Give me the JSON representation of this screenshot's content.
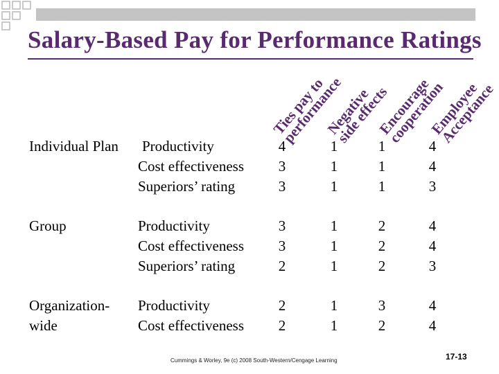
{
  "slide": {
    "title": "Salary-Based Pay for Performance Ratings",
    "footer": "Cummings & Worley, 9e (c) 2008 South-Western/Cengage Learning",
    "page_number": "17-13",
    "accent_color": "#5a2a6e",
    "decoration_color": "#b9b9b9"
  },
  "columns": [
    {
      "line1": "Ties pay to",
      "line2": "performance"
    },
    {
      "line1": "Negative",
      "line2": "side effects"
    },
    {
      "line1": "Encourage",
      "line2": "cooperation"
    },
    {
      "line1": "Employee",
      "line2": "Acceptance"
    }
  ],
  "groups": [
    {
      "plan_lines": [
        "Individual Plan"
      ],
      "rows": [
        {
          "criterion": "Productivity",
          "values": [
            "4",
            "1",
            "1",
            "4"
          ]
        },
        {
          "criterion": "Cost effectiveness",
          "values": [
            "3",
            "1",
            "1",
            "4"
          ]
        },
        {
          "criterion": "Superiors’ rating",
          "values": [
            "3",
            "1",
            "1",
            "3"
          ]
        }
      ]
    },
    {
      "plan_lines": [
        "Group"
      ],
      "rows": [
        {
          "criterion": "Productivity",
          "values": [
            "3",
            "1",
            "2",
            "4"
          ]
        },
        {
          "criterion": "Cost effectiveness",
          "values": [
            "3",
            "1",
            "2",
            "4"
          ]
        },
        {
          "criterion": "Superiors’ rating",
          "values": [
            "2",
            "1",
            "2",
            "3"
          ]
        }
      ]
    },
    {
      "plan_lines": [
        "Organization-",
        "wide"
      ],
      "rows": [
        {
          "criterion": "Productivity",
          "values": [
            "2",
            "1",
            "3",
            "4"
          ]
        },
        {
          "criterion": "Cost effectiveness",
          "values": [
            "2",
            "1",
            "2",
            "4"
          ]
        }
      ]
    }
  ]
}
